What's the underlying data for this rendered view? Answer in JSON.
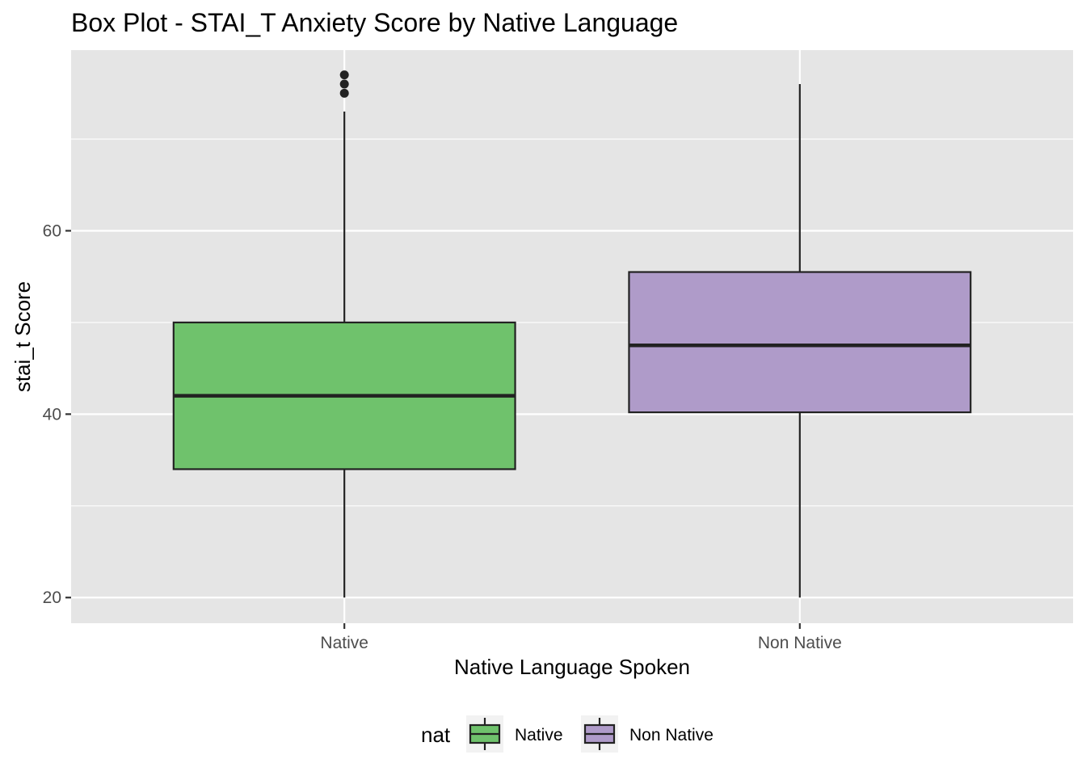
{
  "chart_data": {
    "type": "box",
    "title": "Box Plot - STAI_T Anxiety Score by Native Language",
    "xlabel": "Native Language Spoken",
    "ylabel": "stai_t Score",
    "ylim": [
      17.2,
      79.7
    ],
    "yticks": [
      20,
      40,
      60
    ],
    "grid": true,
    "categories": [
      "Native",
      "Non Native"
    ],
    "boxes": [
      {
        "name": "Native",
        "min": 20,
        "q1": 34,
        "median": 42,
        "q3": 50,
        "max": 73,
        "outliers": [
          75,
          76,
          77
        ],
        "color": "#6fc26c"
      },
      {
        "name": "Non Native",
        "min": 20,
        "q1": 40.2,
        "median": 47.5,
        "q3": 55.5,
        "max": 76,
        "outliers": [],
        "color": "#af9bc9"
      }
    ],
    "legend": {
      "title": "nat",
      "position": "bottom",
      "entries": [
        {
          "label": "Native",
          "color": "#6fc26c"
        },
        {
          "label": "Non Native",
          "color": "#af9bc9"
        }
      ]
    },
    "colors": {
      "panel": "#e5e5e5",
      "grid": "#ffffff",
      "outline": "#222222"
    }
  }
}
